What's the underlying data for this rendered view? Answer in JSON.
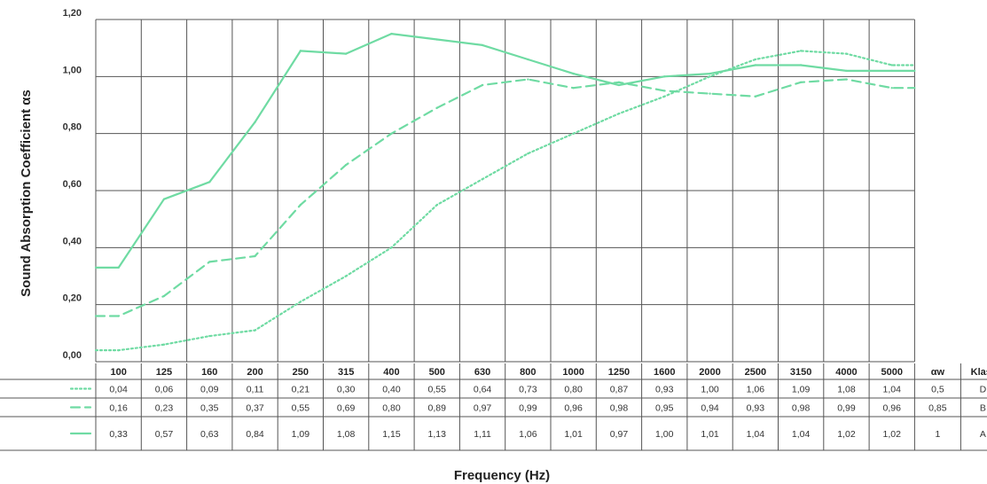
{
  "chart_data": {
    "type": "line",
    "ylabel": "Sound Absorption Coefficient αs",
    "xlabel": "Frequency (Hz)",
    "y_ticks": [
      "0,00",
      "0,20",
      "0,40",
      "0,60",
      "0,80",
      "1,00",
      "1,20"
    ],
    "ylim": [
      0,
      1.2
    ],
    "grid": true,
    "categories": [
      "100",
      "125",
      "160",
      "200",
      "250",
      "315",
      "400",
      "500",
      "630",
      "800",
      "1000",
      "1250",
      "1600",
      "2000",
      "2500",
      "3150",
      "4000",
      "5000"
    ],
    "extra_columns": [
      "αw",
      "Klasse"
    ],
    "line_color": "#6fdba3",
    "series": [
      {
        "style": "dotted",
        "values": [
          0.04,
          0.06,
          0.09,
          0.11,
          0.21,
          0.3,
          0.4,
          0.55,
          0.64,
          0.73,
          0.8,
          0.87,
          0.93,
          1.0,
          1.06,
          1.09,
          1.08,
          1.04
        ],
        "labels": [
          "0,04",
          "0,06",
          "0,09",
          "0,11",
          "0,21",
          "0,30",
          "0,40",
          "0,55",
          "0,64",
          "0,73",
          "0,80",
          "0,87",
          "0,93",
          "1,00",
          "1,06",
          "1,09",
          "1,08",
          "1,04"
        ],
        "aw": "0,5",
        "klasse": "D"
      },
      {
        "style": "dashed",
        "values": [
          0.16,
          0.23,
          0.35,
          0.37,
          0.55,
          0.69,
          0.8,
          0.89,
          0.97,
          0.99,
          0.96,
          0.98,
          0.95,
          0.94,
          0.93,
          0.98,
          0.99,
          0.96
        ],
        "labels": [
          "0,16",
          "0,23",
          "0,35",
          "0,37",
          "0,55",
          "0,69",
          "0,80",
          "0,89",
          "0,97",
          "0,99",
          "0,96",
          "0,98",
          "0,95",
          "0,94",
          "0,93",
          "0,98",
          "0,99",
          "0,96"
        ],
        "aw": "0,85",
        "klasse": "B"
      },
      {
        "style": "solid",
        "values": [
          0.33,
          0.57,
          0.63,
          0.84,
          1.09,
          1.08,
          1.15,
          1.13,
          1.11,
          1.06,
          1.01,
          0.97,
          1.0,
          1.01,
          1.04,
          1.04,
          1.02,
          1.02
        ],
        "labels": [
          "0,33",
          "0,57",
          "0,63",
          "0,84",
          "1,09",
          "1,08",
          "1,15",
          "1,13",
          "1,11",
          "1,06",
          "1,01",
          "0,97",
          "1,00",
          "1,01",
          "1,04",
          "1,04",
          "1,02",
          "1,02"
        ],
        "aw": "1",
        "klasse": "A"
      }
    ]
  }
}
